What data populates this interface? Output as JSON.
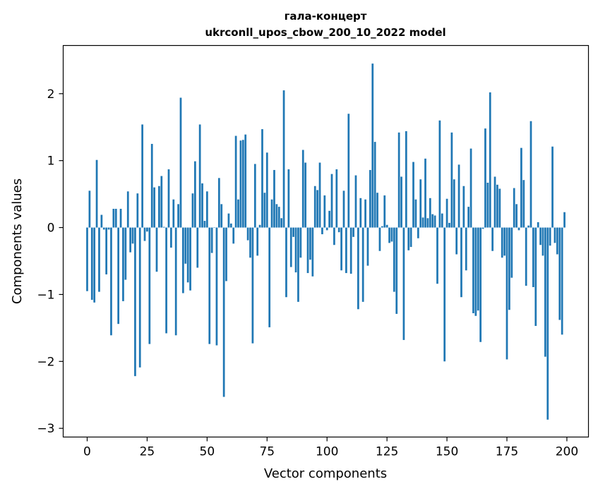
{
  "chart_data": {
    "type": "bar",
    "title_line1": "гала-концерт",
    "title_line2": "ukrconll_upos_cbow_200_10_2022 model",
    "xlabel": "Vector components",
    "ylabel": "Components values",
    "xlim": [
      -10,
      209
    ],
    "ylim": [
      -3.13,
      2.72
    ],
    "xticks": [
      0,
      25,
      50,
      75,
      100,
      125,
      150,
      175,
      200
    ],
    "yticks": [
      2,
      1,
      0,
      -1,
      -2,
      -3
    ],
    "ytick_labels": [
      "2",
      "1",
      "0",
      "−1",
      "−2",
      "−3"
    ],
    "bar_color": "#1f77b4",
    "values": [
      -0.95,
      0.55,
      -1.08,
      -1.12,
      1.01,
      -0.96,
      0.19,
      -0.03,
      -0.7,
      -0.03,
      -1.61,
      0.28,
      0.28,
      -1.44,
      0.28,
      -1.1,
      -0.78,
      0.54,
      -0.37,
      -0.24,
      -2.22,
      0.51,
      -2.09,
      1.54,
      -0.2,
      -0.06,
      -1.74,
      1.25,
      0.6,
      -0.66,
      0.62,
      0.77,
      0.01,
      -1.58,
      0.87,
      -0.3,
      0.42,
      -1.61,
      0.35,
      1.94,
      -0.98,
      -0.54,
      -0.82,
      -0.94,
      0.51,
      0.99,
      -0.6,
      1.54,
      0.66,
      0.1,
      0.54,
      -1.74,
      -0.38,
      0.0,
      -1.76,
      0.74,
      0.35,
      -2.53,
      -0.8,
      0.21,
      0.06,
      -0.24,
      1.37,
      0.42,
      1.3,
      1.31,
      1.39,
      -0.19,
      -0.45,
      -1.73,
      0.95,
      -0.42,
      0.04,
      1.47,
      0.52,
      1.12,
      -1.49,
      0.42,
      0.86,
      0.35,
      0.31,
      0.14,
      2.05,
      -1.04,
      0.87,
      -0.59,
      -0.14,
      -0.67,
      -1.11,
      -0.45,
      1.16,
      0.97,
      -0.68,
      -0.48,
      -0.73,
      0.62,
      0.56,
      0.97,
      -0.1,
      0.48,
      -0.04,
      0.25,
      0.8,
      -0.26,
      0.87,
      -0.07,
      -0.64,
      0.55,
      -0.68,
      1.7,
      -0.69,
      -0.14,
      0.78,
      -1.22,
      0.44,
      -1.11,
      0.42,
      -0.57,
      0.86,
      2.45,
      1.28,
      0.52,
      -0.35,
      0.02,
      0.48,
      0.04,
      -0.23,
      -0.21,
      -0.96,
      -1.29,
      1.42,
      0.76,
      -1.68,
      1.44,
      -0.34,
      -0.29,
      0.98,
      0.42,
      -0.16,
      0.72,
      0.15,
      1.03,
      0.14,
      0.44,
      0.2,
      0.18,
      -0.84,
      1.6,
      0.21,
      -2.0,
      0.43,
      0.07,
      1.42,
      0.72,
      -0.4,
      0.94,
      -1.04,
      0.62,
      -0.64,
      0.31,
      1.18,
      -1.28,
      -1.32,
      -1.24,
      -1.71,
      -0.02,
      1.48,
      0.67,
      2.02,
      -0.35,
      0.76,
      0.64,
      0.58,
      -0.45,
      -0.42,
      -1.97,
      -1.23,
      -0.75,
      0.59,
      0.35,
      -0.04,
      1.19,
      0.71,
      -0.87,
      0.03,
      1.59,
      -0.89,
      -1.47,
      0.08,
      -0.26,
      -0.42,
      -1.93,
      -2.87,
      -0.27,
      1.21,
      -0.23,
      -0.4,
      -1.38,
      -1.6,
      0.23
    ]
  }
}
